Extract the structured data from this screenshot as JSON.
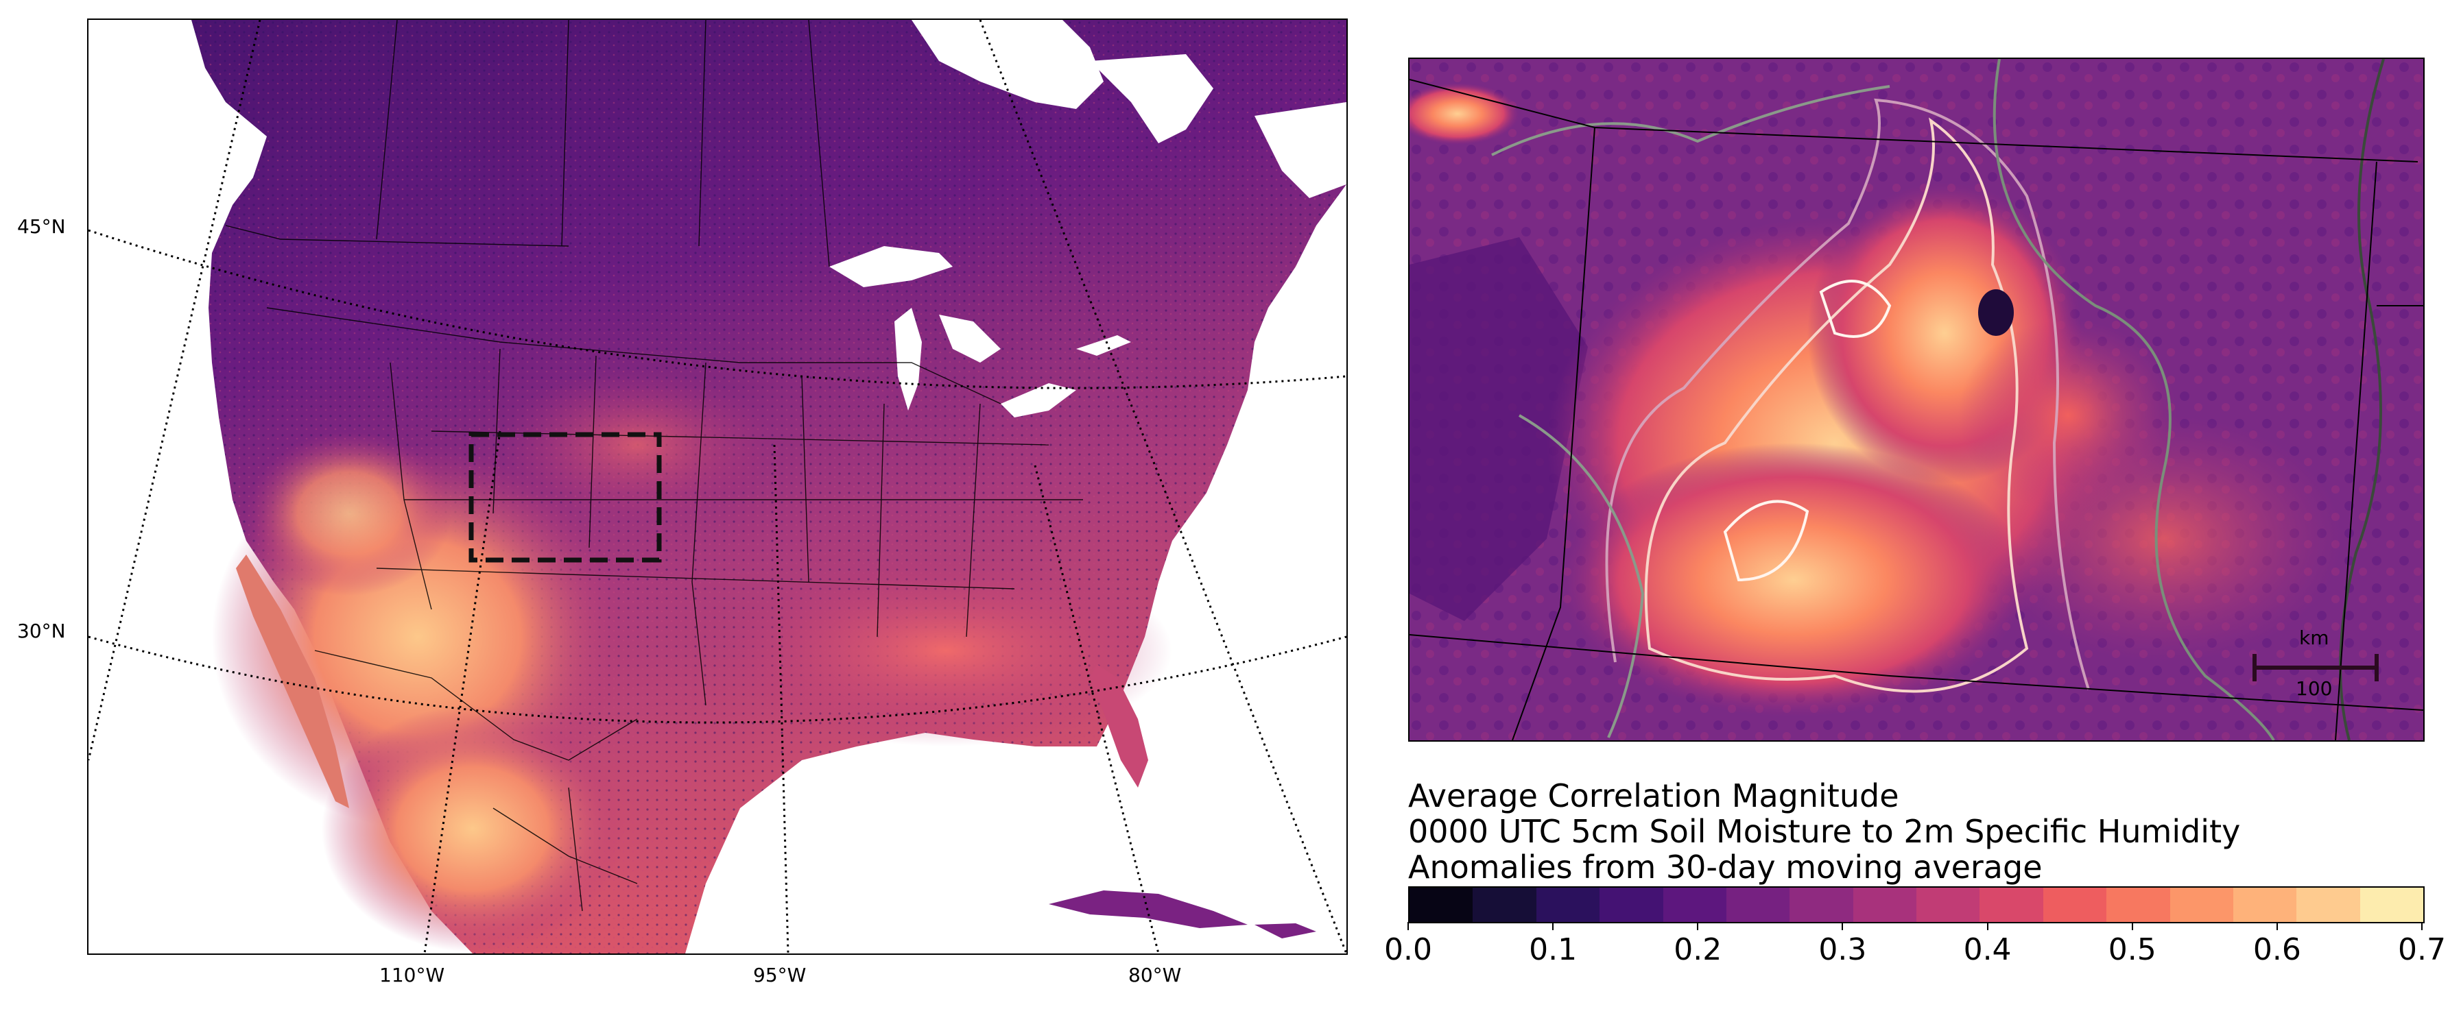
{
  "left_map": {
    "lat_labels": [
      "45°N",
      "30°N"
    ],
    "lon_labels": [
      "110°W",
      "95°W",
      "80°W"
    ]
  },
  "right_map": {
    "scale_bar": {
      "unit": "km",
      "value": "100"
    }
  },
  "colorbar": {
    "title_lines": [
      "Average Correlation Magnitude",
      "0000 UTC 5cm Soil Moisture to 2m Specific Humidity",
      "Anomalies from 30-day moving average"
    ],
    "tick_labels": [
      "0.0",
      "0.1",
      "0.2",
      "0.3",
      "0.4",
      "0.5",
      "0.6",
      "0.7"
    ],
    "colors": [
      "#000004",
      "#120d31",
      "#2f1163",
      "#51127c",
      "#721f81",
      "#932b80",
      "#b5367a",
      "#d6456c",
      "#f1605d",
      "#fb8761",
      "#feae77",
      "#fecf92",
      "#fcfdbf"
    ]
  },
  "chart_data": {
    "type": "heatmap",
    "title": "Average Correlation Magnitude",
    "subtitle": "0000 UTC 5cm Soil Moisture to 2m Specific Humidity; Anomalies from 30-day moving average",
    "colorbar_range": [
      0.0,
      0.7
    ],
    "colorbar_ticks": [
      0.0,
      0.1,
      0.2,
      0.3,
      0.4,
      0.5,
      0.6,
      0.7
    ],
    "colormap": "magma",
    "graticule_lat": [
      "45°N",
      "30°N"
    ],
    "graticule_lon": [
      "110°W",
      "95°W",
      "80°W"
    ]
  }
}
